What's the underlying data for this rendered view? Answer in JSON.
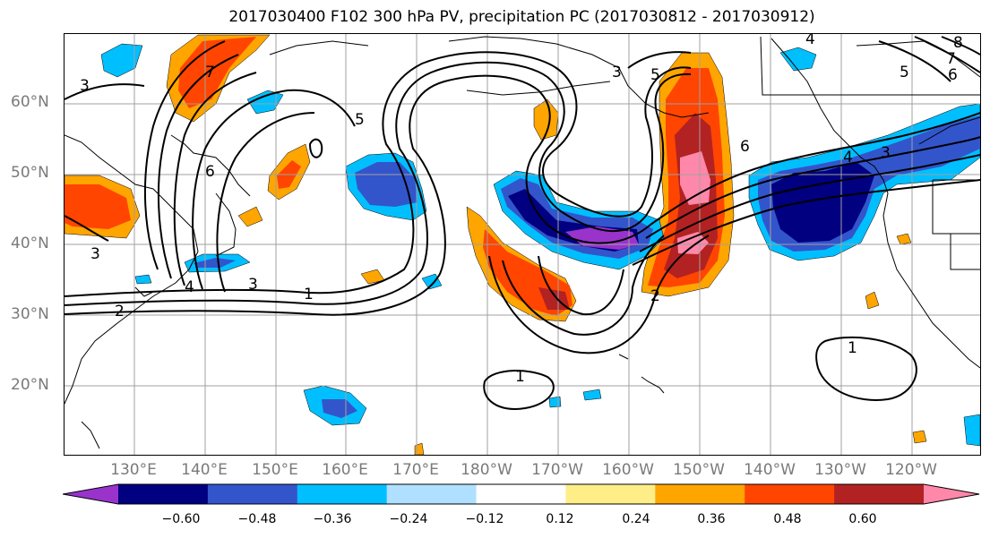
{
  "title": "2017030400 F102 300 hPa PV, precipitation PC (2017030812 - 2017030912)",
  "map": {
    "lat_labels": [
      "60°N",
      "50°N",
      "40°N",
      "30°N",
      "20°N"
    ],
    "lon_labels": [
      "130°E",
      "140°E",
      "150°E",
      "160°E",
      "170°E",
      "180°W",
      "170°W",
      "160°W",
      "150°W",
      "140°W",
      "130°W",
      "120°W"
    ],
    "contour_labels": [
      "1",
      "2",
      "3",
      "4",
      "5",
      "6",
      "1",
      "1",
      "2",
      "3",
      "3",
      "3",
      "4",
      "5",
      "6",
      "7",
      "8",
      "4",
      "3",
      "5",
      "6",
      "7"
    ]
  },
  "colorbar": {
    "colors": [
      "#9933cc",
      "#000080",
      "#3355cc",
      "#00bfff",
      "#b0e0ff",
      "#ffffff",
      "#ffee88",
      "#ffa500",
      "#ff4500",
      "#b22222",
      "#ff88aa"
    ],
    "tick_labels": [
      "−0.60",
      "−0.48",
      "−0.36",
      "−0.24",
      "−0.12",
      "0.12",
      "0.24",
      "0.36",
      "0.48",
      "0.60"
    ]
  }
}
